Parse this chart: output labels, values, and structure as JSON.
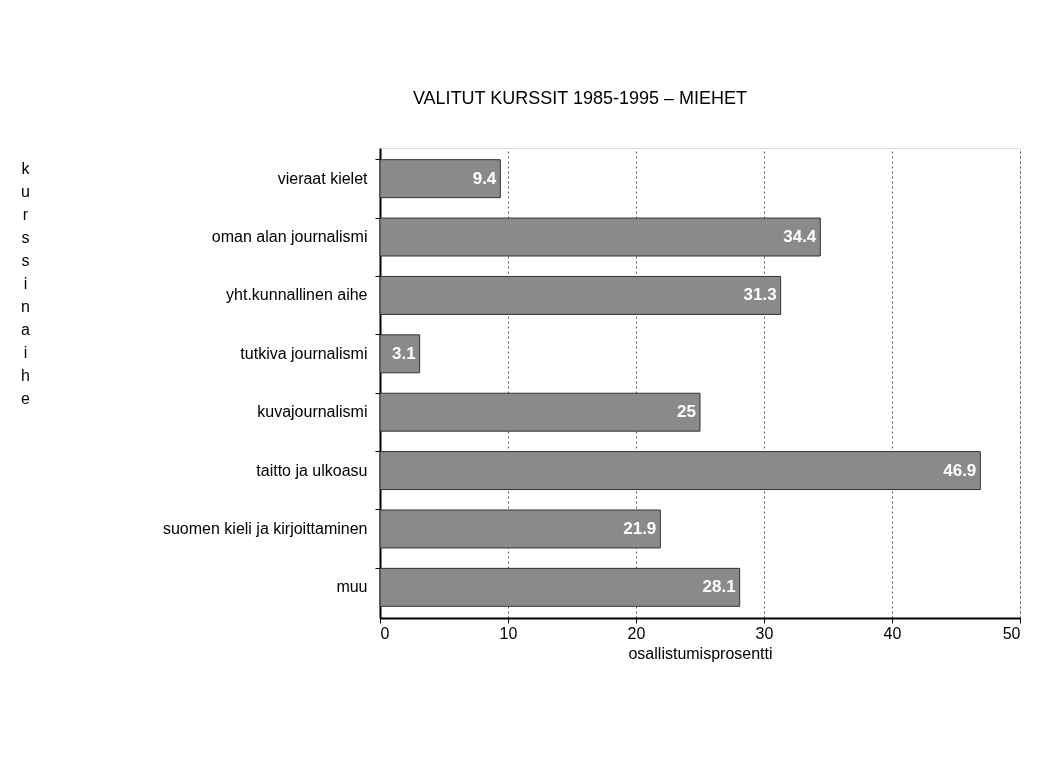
{
  "chart_data": {
    "type": "bar",
    "orientation": "horizontal",
    "title": "VALITUT KURSSIT 1985-1995 – MIEHET",
    "xlabel": "osallistumisprosentti",
    "ylabel": "kurssin aihe",
    "categories": [
      "vieraat kielet",
      "oman alan journalismi",
      "yht.kunnallinen aihe",
      "tutkiva journalismi",
      "kuvajournalismi",
      "taitto ja ulkoasu",
      "suomen kieli ja kirjoittaminen",
      "muu"
    ],
    "values": [
      9.4,
      34.4,
      31.3,
      3.1,
      25,
      46.9,
      21.9,
      28.1
    ],
    "color": "#8a8a8a",
    "xlim": [
      0,
      50
    ],
    "xticks": [
      0,
      10,
      20,
      30,
      40,
      50
    ],
    "grid": "x",
    "data_labels": true
  }
}
